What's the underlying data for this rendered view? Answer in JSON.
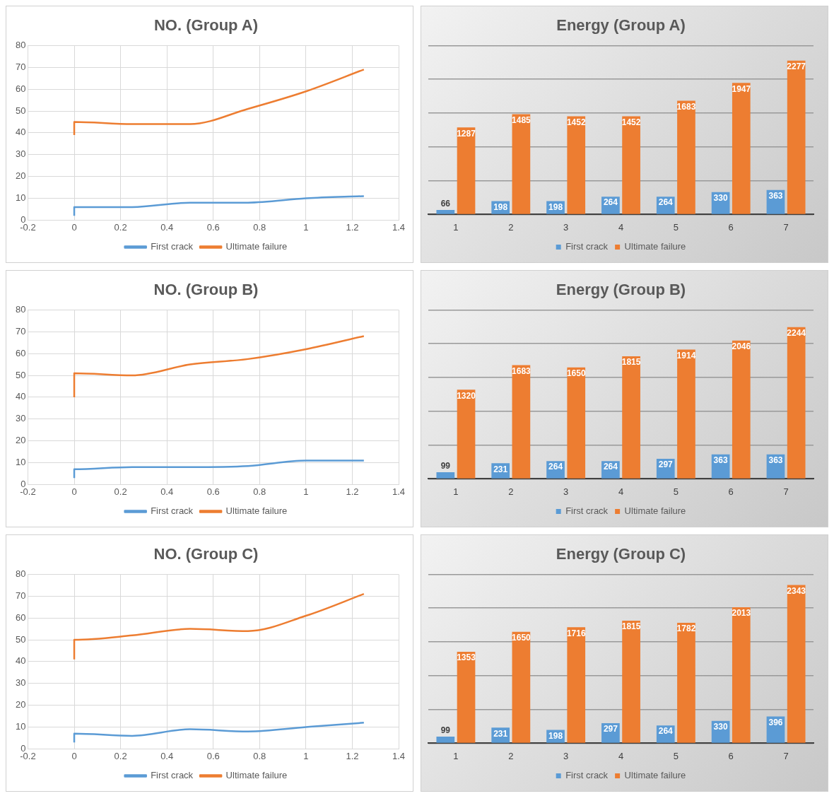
{
  "chart_data": [
    {
      "type": "line",
      "title": "NO. (Group A)",
      "xlim": [
        -0.2,
        1.4
      ],
      "xticks": [
        -0.2,
        0,
        0.2,
        0.4,
        0.6,
        0.8,
        1,
        1.2,
        1.4
      ],
      "ylim": [
        0,
        80
      ],
      "yticks": [
        0,
        10,
        20,
        30,
        40,
        50,
        60,
        70,
        80
      ],
      "grid": true,
      "legend": "bottom",
      "marker": "none",
      "line_style": "solid",
      "series": [
        {
          "name": "First crack",
          "color": "#5b9bd5",
          "x": [
            0,
            0,
            0.25,
            0.5,
            0.75,
            1,
            1.25
          ],
          "values": [
            2,
            6,
            6,
            8,
            8,
            10,
            11
          ]
        },
        {
          "name": "Ultimate failure",
          "color": "#ed7d31",
          "x": [
            0,
            0,
            0.25,
            0.5,
            0.75,
            1,
            1.25
          ],
          "values": [
            39,
            45,
            44,
            44,
            51,
            59,
            69
          ]
        }
      ]
    },
    {
      "type": "bar",
      "title": "Energy (Group A)",
      "categories": [
        "1",
        "2",
        "3",
        "4",
        "5",
        "6",
        "7"
      ],
      "ylim": [
        0,
        2500
      ],
      "yticks": [
        {
          "value": 0,
          "label": null
        },
        {
          "value": 500,
          "label": null
        },
        {
          "value": 1000,
          "label": null
        },
        {
          "value": 1500,
          "label": null
        },
        {
          "value": 2000,
          "label": null
        },
        {
          "value": 2500,
          "label": null
        }
      ],
      "tick_labels": "x",
      "grid": "y",
      "legend": "bottom",
      "data_labels": true,
      "series": [
        {
          "name": "First crack",
          "color": "#5b9bd5",
          "values": [
            66,
            198,
            198,
            264,
            264,
            330,
            363
          ]
        },
        {
          "name": "Ultimate failure",
          "color": "#ed7d31",
          "values": [
            1287,
            1485,
            1452,
            1452,
            1683,
            1947,
            2277
          ]
        }
      ]
    },
    {
      "type": "line",
      "title": "NO. (Group B)",
      "xlim": [
        -0.2,
        1.4
      ],
      "xticks": [
        -0.2,
        0,
        0.2,
        0.4,
        0.6,
        0.8,
        1,
        1.2,
        1.4
      ],
      "ylim": [
        0,
        80
      ],
      "yticks": [
        0,
        10,
        20,
        30,
        40,
        50,
        60,
        70,
        80
      ],
      "grid": true,
      "legend": "bottom",
      "marker": "none",
      "line_style": "solid",
      "series": [
        {
          "name": "First crack",
          "color": "#5b9bd5",
          "x": [
            0,
            0,
            0.25,
            0.5,
            0.75,
            1,
            1.25
          ],
          "values": [
            3,
            7,
            8,
            8,
            8.5,
            11,
            11
          ]
        },
        {
          "name": "Ultimate failure",
          "color": "#ed7d31",
          "x": [
            0,
            0,
            0.25,
            0.5,
            0.75,
            1,
            1.25
          ],
          "values": [
            40,
            51,
            50,
            55,
            57.5,
            62,
            68
          ]
        }
      ]
    },
    {
      "type": "bar",
      "title": "Energy (Group B)",
      "categories": [
        "1",
        "2",
        "3",
        "4",
        "5",
        "6",
        "7"
      ],
      "ylim": [
        0,
        2500
      ],
      "yticks": [
        {
          "value": 0,
          "label": null
        },
        {
          "value": 500,
          "label": null
        },
        {
          "value": 1000,
          "label": null
        },
        {
          "value": 1500,
          "label": null
        },
        {
          "value": 2000,
          "label": null
        },
        {
          "value": 2500,
          "label": null
        }
      ],
      "tick_labels": "x",
      "grid": "y",
      "legend": "bottom",
      "data_labels": true,
      "series": [
        {
          "name": "First crack",
          "color": "#5b9bd5",
          "values": [
            99,
            231,
            264,
            264,
            297,
            363,
            363
          ]
        },
        {
          "name": "Ultimate failure",
          "color": "#ed7d31",
          "values": [
            1320,
            1683,
            1650,
            1815,
            1914,
            2046,
            2244
          ]
        }
      ]
    },
    {
      "type": "line",
      "title": "NO. (Group C)",
      "xlim": [
        -0.2,
        1.4
      ],
      "xticks": [
        -0.2,
        0,
        0.2,
        0.4,
        0.6,
        0.8,
        1,
        1.2,
        1.4
      ],
      "ylim": [
        0,
        80
      ],
      "yticks": [
        0,
        10,
        20,
        30,
        40,
        50,
        60,
        70,
        80
      ],
      "grid": true,
      "legend": "bottom",
      "marker": "none",
      "line_style": "solid",
      "series": [
        {
          "name": "First crack",
          "color": "#5b9bd5",
          "x": [
            0,
            0,
            0.25,
            0.5,
            0.75,
            1,
            1.25
          ],
          "values": [
            3,
            7,
            6,
            9,
            8,
            10,
            12
          ]
        },
        {
          "name": "Ultimate failure",
          "color": "#ed7d31",
          "x": [
            0,
            0,
            0.25,
            0.5,
            0.75,
            1,
            1.25
          ],
          "values": [
            41,
            50,
            52,
            55,
            54,
            61,
            71
          ]
        }
      ]
    },
    {
      "type": "bar",
      "title": "Energy (Group C)",
      "categories": [
        "1",
        "2",
        "3",
        "4",
        "5",
        "6",
        "7"
      ],
      "ylim": [
        0,
        2500
      ],
      "yticks": [
        {
          "value": 0,
          "label": null
        },
        {
          "value": 500,
          "label": null
        },
        {
          "value": 1000,
          "label": null
        },
        {
          "value": 1500,
          "label": null
        },
        {
          "value": 2000,
          "label": null
        },
        {
          "value": 2500,
          "label": null
        }
      ],
      "tick_labels": "x",
      "grid": "y",
      "legend": "bottom",
      "data_labels": true,
      "series": [
        {
          "name": "First crack",
          "color": "#5b9bd5",
          "values": [
            99,
            231,
            198,
            297,
            264,
            330,
            396
          ]
        },
        {
          "name": "Ultimate failure",
          "color": "#ed7d31",
          "values": [
            1353,
            1650,
            1716,
            1815,
            1782,
            2013,
            2343
          ]
        }
      ]
    }
  ]
}
